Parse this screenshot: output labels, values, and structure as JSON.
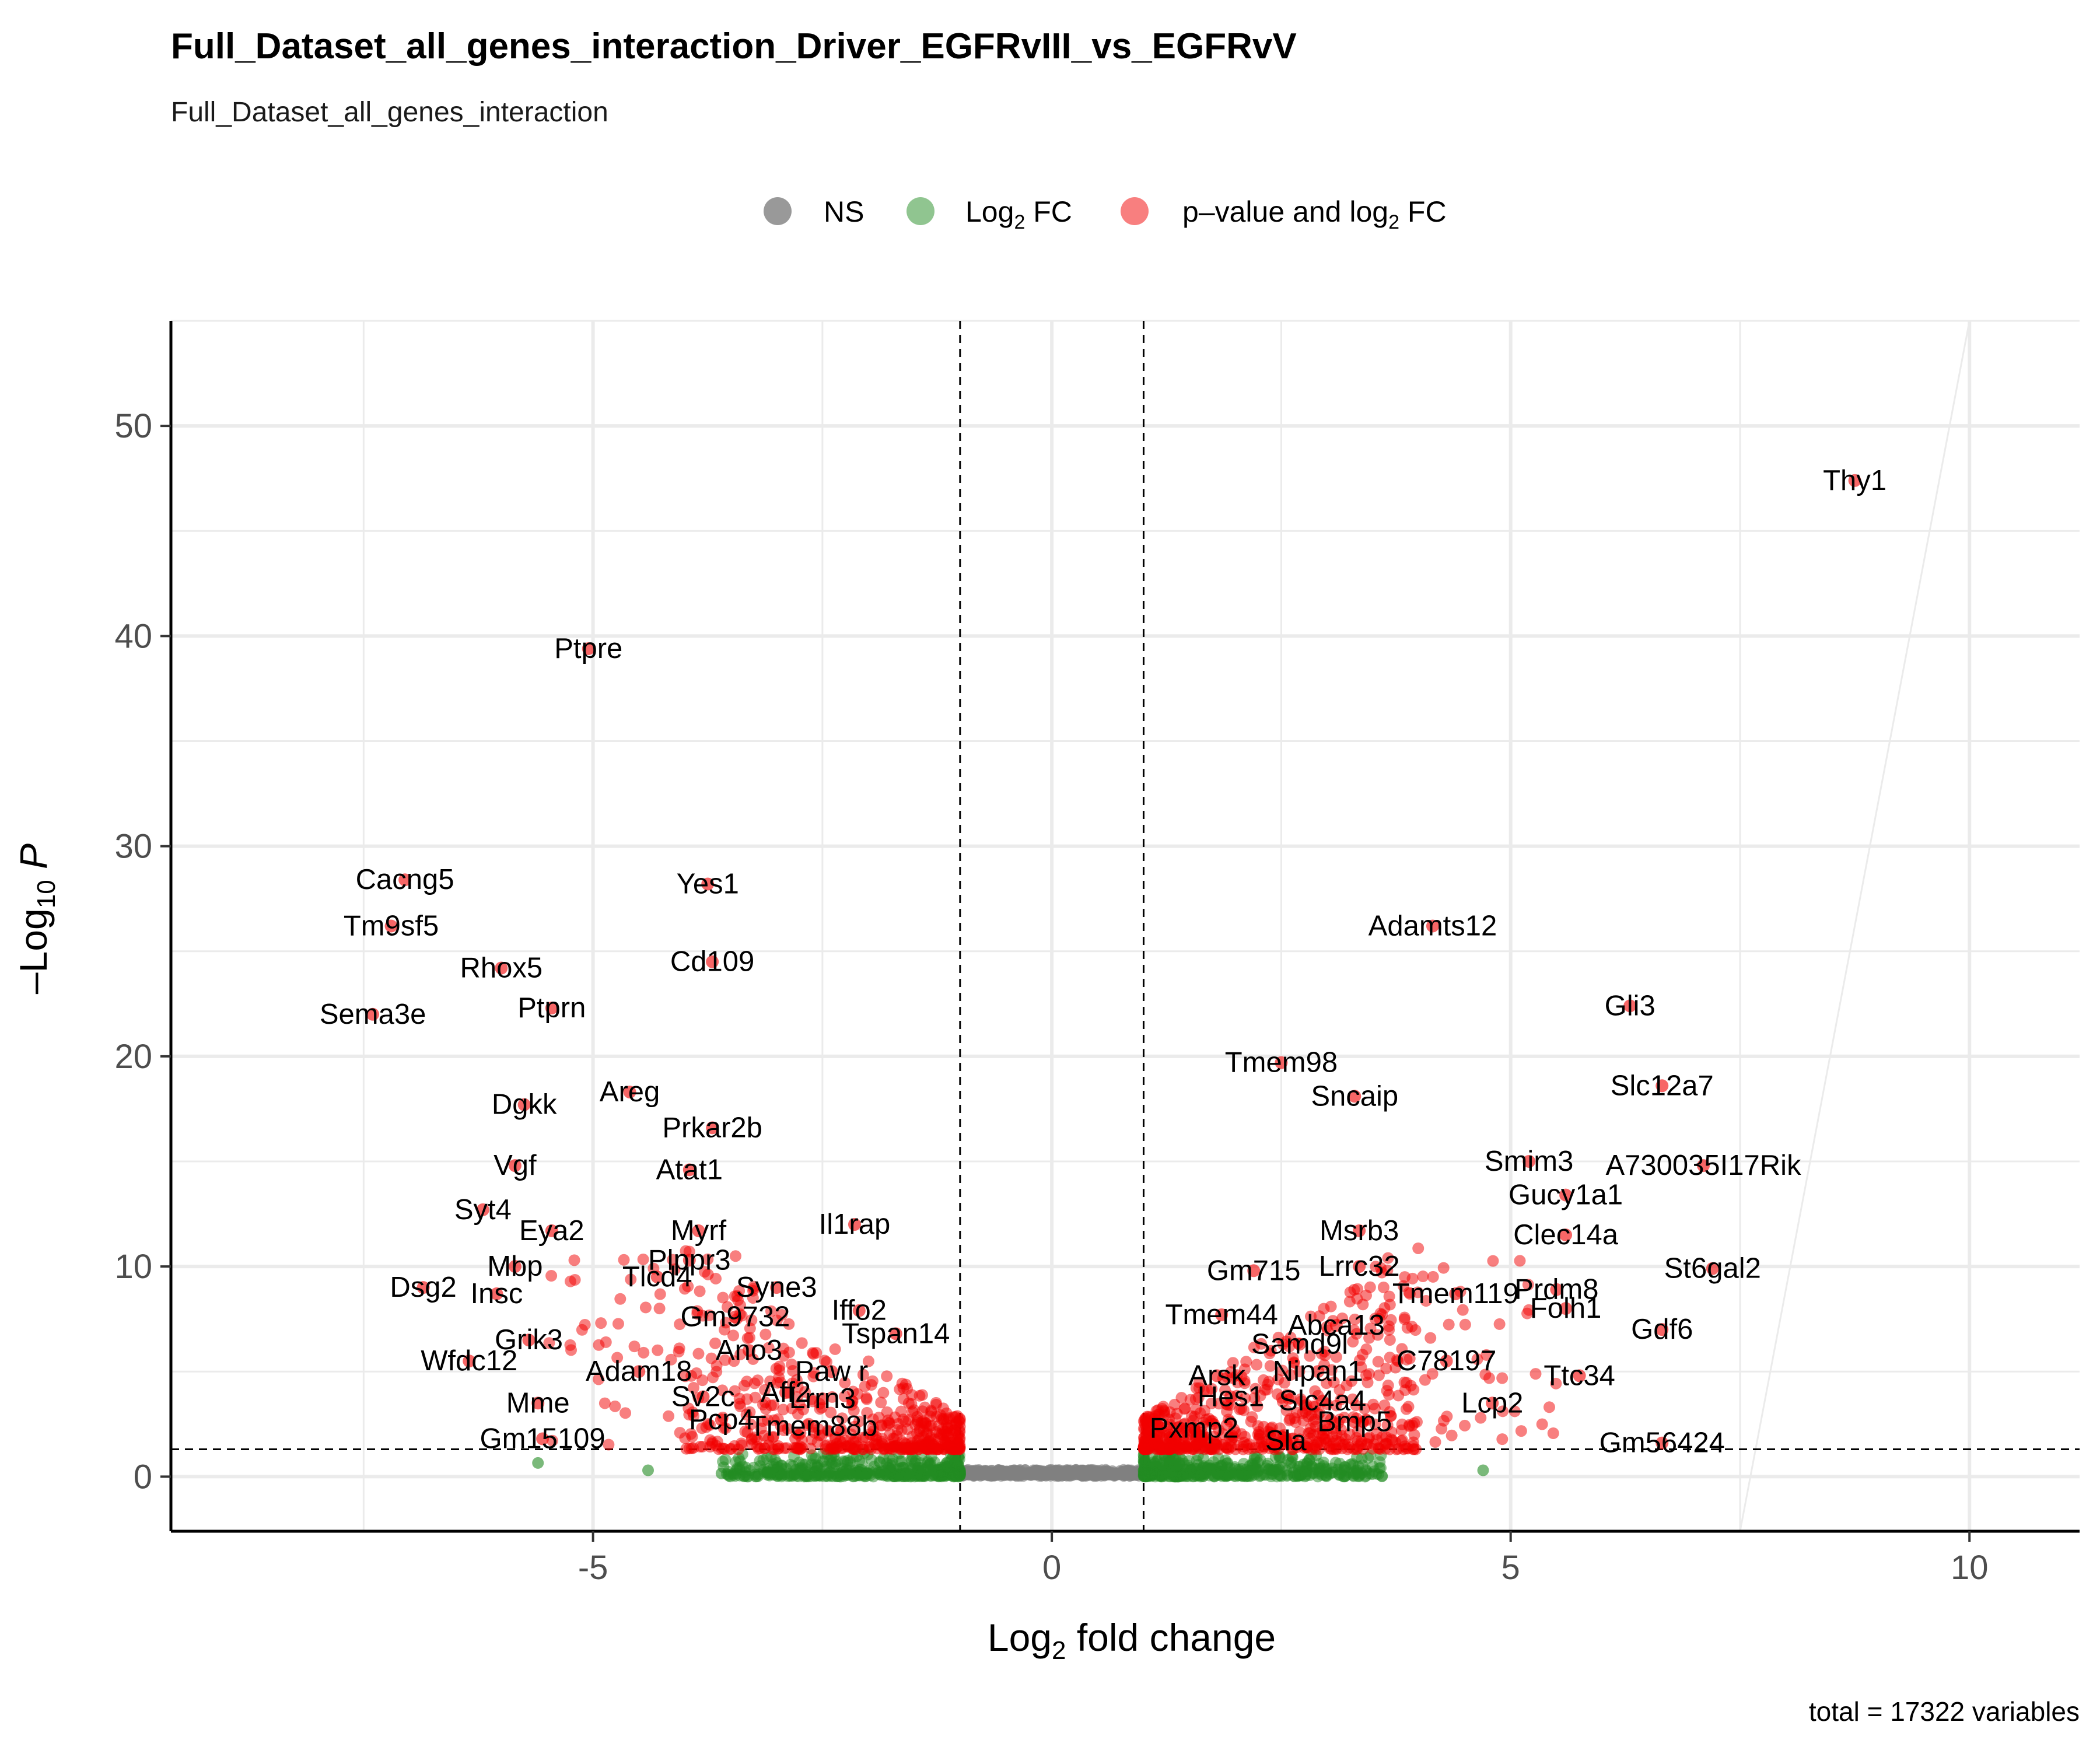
{
  "chart_data": {
    "type": "scatter",
    "title": "Full_Dataset_all_genes_interaction_Driver_EGFRvIII_vs_EGFRvV",
    "subtitle": "Full_Dataset_all_genes_interaction",
    "caption": "total = 17322 variables",
    "xlabel": "Log2 fold change",
    "ylabel": "-Log10 P",
    "xlim": [
      -9.6,
      11.2
    ],
    "ylim": [
      -2.6,
      55
    ],
    "x_ticks": [
      -5,
      0,
      5,
      10
    ],
    "x_tick_labels": [
      "-5",
      "0",
      "5",
      "10"
    ],
    "y_ticks": [
      0,
      10,
      20,
      30,
      40,
      50
    ],
    "y_tick_labels": [
      "0",
      "10",
      "20",
      "30",
      "40",
      "50"
    ],
    "grid": true,
    "legend_position": "top",
    "fc_cutoff": 1,
    "p_cutoff_neglog10": 1.3,
    "legend": [
      {
        "key": "NS",
        "label": "NS",
        "color": "#808080"
      },
      {
        "key": "FC",
        "label": "Log2 FC",
        "color": "#228B22"
      },
      {
        "key": "PFC",
        "label": "p–value and log2 FC",
        "color": "#F20000"
      }
    ],
    "labeled_genes": [
      {
        "gene": "Thy1",
        "x": 8.75,
        "y": 47.4
      },
      {
        "gene": "Ptpre",
        "x": -5.05,
        "y": 39.4
      },
      {
        "gene": "Cacng5",
        "x": -7.05,
        "y": 28.4
      },
      {
        "gene": "Yes1",
        "x": -3.75,
        "y": 28.2
      },
      {
        "gene": "Tm9sf5",
        "x": -7.2,
        "y": 26.2
      },
      {
        "gene": "Adamts12",
        "x": 4.15,
        "y": 26.2
      },
      {
        "gene": "Rhox5",
        "x": -6.0,
        "y": 24.2
      },
      {
        "gene": "Cd109",
        "x": -3.7,
        "y": 24.5
      },
      {
        "gene": "Sema3e",
        "x": -7.4,
        "y": 22.0
      },
      {
        "gene": "Ptprn",
        "x": -5.45,
        "y": 22.3
      },
      {
        "gene": "Gli3",
        "x": 6.3,
        "y": 22.4
      },
      {
        "gene": "Tmem98",
        "x": 2.5,
        "y": 19.7
      },
      {
        "gene": "Sncaip",
        "x": 3.3,
        "y": 18.1
      },
      {
        "gene": "Slc12a7",
        "x": 6.65,
        "y": 18.6
      },
      {
        "gene": "Dgkk",
        "x": -5.75,
        "y": 17.7
      },
      {
        "gene": "Areg",
        "x": -4.6,
        "y": 18.3
      },
      {
        "gene": "Prkar2b",
        "x": -3.7,
        "y": 16.6
      },
      {
        "gene": "Vgf",
        "x": -5.85,
        "y": 14.8
      },
      {
        "gene": "Atat1",
        "x": -3.95,
        "y": 14.6
      },
      {
        "gene": "Smim3",
        "x": 5.2,
        "y": 15.0
      },
      {
        "gene": "A730035I17Rik",
        "x": 7.1,
        "y": 14.8
      },
      {
        "gene": "Gucy1a1",
        "x": 5.6,
        "y": 13.4
      },
      {
        "gene": "Syt4",
        "x": -6.2,
        "y": 12.7
      },
      {
        "gene": "Eya2",
        "x": -5.45,
        "y": 11.7
      },
      {
        "gene": "Myrf",
        "x": -3.85,
        "y": 11.7
      },
      {
        "gene": "Il1rap",
        "x": -2.15,
        "y": 12.0
      },
      {
        "gene": "Msrb3",
        "x": 3.35,
        "y": 11.7
      },
      {
        "gene": "Clec14a",
        "x": 5.6,
        "y": 11.5
      },
      {
        "gene": "Mbp",
        "x": -5.85,
        "y": 10.0
      },
      {
        "gene": "Plppr3",
        "x": -3.95,
        "y": 10.3
      },
      {
        "gene": "Gm715",
        "x": 2.2,
        "y": 9.8
      },
      {
        "gene": "Lrrc32",
        "x": 3.35,
        "y": 10.0
      },
      {
        "gene": "St6gal2",
        "x": 7.2,
        "y": 9.9
      },
      {
        "gene": "Dsg2",
        "x": -6.85,
        "y": 9.0
      },
      {
        "gene": "Tlcd4",
        "x": -4.3,
        "y": 9.5
      },
      {
        "gene": "Syne3",
        "x": -3.0,
        "y": 9.0
      },
      {
        "gene": "Prdm8",
        "x": 5.5,
        "y": 8.9
      },
      {
        "gene": "Tmem119",
        "x": 4.4,
        "y": 8.7
      },
      {
        "gene": "Insc",
        "x": -6.05,
        "y": 8.7
      },
      {
        "gene": "Iffo2",
        "x": -2.1,
        "y": 7.9
      },
      {
        "gene": "Gm9732",
        "x": -3.45,
        "y": 7.6
      },
      {
        "gene": "Folh1",
        "x": 5.6,
        "y": 8.0
      },
      {
        "gene": "Gdf6",
        "x": 6.65,
        "y": 7.0
      },
      {
        "gene": "Tmem44",
        "x": 1.85,
        "y": 7.7
      },
      {
        "gene": "Abca13",
        "x": 3.1,
        "y": 7.2
      },
      {
        "gene": "Grik3",
        "x": -5.7,
        "y": 6.5
      },
      {
        "gene": "Tspan14",
        "x": -1.7,
        "y": 6.8
      },
      {
        "gene": "Ano3",
        "x": -3.3,
        "y": 6.0
      },
      {
        "gene": "Samd9l",
        "x": 2.7,
        "y": 6.3
      },
      {
        "gene": "Wfdc12",
        "x": -6.35,
        "y": 5.5
      },
      {
        "gene": "Adam18",
        "x": -4.5,
        "y": 5.0
      },
      {
        "gene": "C78197",
        "x": 4.3,
        "y": 5.5
      },
      {
        "gene": "Paw r",
        "x": -2.4,
        "y": 5.0
      },
      {
        "gene": "Arsk",
        "x": 1.8,
        "y": 4.8
      },
      {
        "gene": "Nipan1",
        "x": 2.9,
        "y": 5.0
      },
      {
        "gene": "Ttc34",
        "x": 5.75,
        "y": 4.8
      },
      {
        "gene": "Aff2",
        "x": -2.9,
        "y": 4.0
      },
      {
        "gene": "Sv2c",
        "x": -3.8,
        "y": 3.8
      },
      {
        "gene": "Lrrn3",
        "x": -2.5,
        "y": 3.7
      },
      {
        "gene": "Mme",
        "x": -5.6,
        "y": 3.5
      },
      {
        "gene": "Hes1",
        "x": 1.95,
        "y": 3.8
      },
      {
        "gene": "Slc4a4",
        "x": 2.95,
        "y": 3.6
      },
      {
        "gene": "Lcp2",
        "x": 4.8,
        "y": 3.5
      },
      {
        "gene": "Pcp4",
        "x": -3.6,
        "y": 2.7
      },
      {
        "gene": "Tmem88b",
        "x": -2.6,
        "y": 2.4
      },
      {
        "gene": "Bmp5",
        "x": 3.3,
        "y": 2.6
      },
      {
        "gene": "Pxmp2",
        "x": 1.55,
        "y": 2.3
      },
      {
        "gene": "Gm15109",
        "x": -5.55,
        "y": 1.8
      },
      {
        "gene": "Sla",
        "x": 2.55,
        "y": 1.7
      },
      {
        "gene": "Gm56424",
        "x": 6.65,
        "y": 1.6
      }
    ],
    "fc_only_outliers": [
      {
        "x": -5.6,
        "y": 0.65
      },
      {
        "x": -4.4,
        "y": 0.3
      },
      {
        "x": -3.6,
        "y": 0.15
      },
      {
        "x": 4.7,
        "y": 0.3
      }
    ]
  }
}
